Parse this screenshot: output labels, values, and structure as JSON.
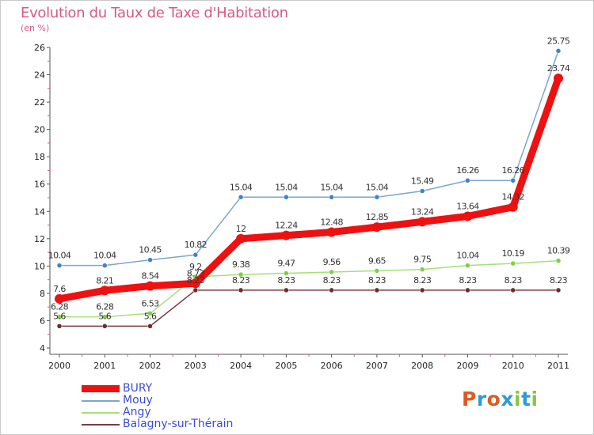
{
  "title": "Evolution du Taux de Taxe d'Habitation",
  "subtitle": "(en %)",
  "logo": {
    "text": "Proxiti",
    "colors": [
      "#e05a20",
      "#2e9ad6",
      "#e05a20",
      "#2e9ad6",
      "#8cc63f",
      "#2e9ad6",
      "#8cc63f"
    ]
  },
  "colors": {
    "title": "#d45b84",
    "legend_text": "#3b4bd8",
    "axis": "#555555",
    "tick_minor": "#d45b84"
  },
  "chart_data": {
    "type": "line",
    "title": "Evolution du Taux de Taxe d'Habitation",
    "ylabel": "(en %)",
    "xlabel": "",
    "x": [
      "2000",
      "2001",
      "2002",
      "2003",
      "2004",
      "2005",
      "2006",
      "2007",
      "2008",
      "2009",
      "2010",
      "2011"
    ],
    "ylim": [
      4,
      26
    ],
    "yticks": [
      "4",
      "6",
      "8",
      "10",
      "12",
      "14",
      "16",
      "18",
      "20",
      "22",
      "24",
      "26"
    ],
    "grid": false,
    "legend_position": "bottom-left",
    "series": [
      {
        "name": "BURY",
        "color": "#ee1111",
        "marker": "#ee1111",
        "values": [
          7.6,
          8.21,
          8.54,
          8.73,
          12,
          12.24,
          12.48,
          12.85,
          13.24,
          13.64,
          14.32,
          23.74
        ],
        "labels": [
          "7.6",
          "8.21",
          "8.54",
          "8.73",
          "12",
          "12.24",
          "12.48",
          "12.85",
          "13.24",
          "13.64",
          "14.32",
          "23.74"
        ]
      },
      {
        "name": "Mouy",
        "color": "#7ba6d0",
        "marker": "#3e85c6",
        "values": [
          10.04,
          10.04,
          10.45,
          10.82,
          15.04,
          15.04,
          15.04,
          15.04,
          15.49,
          16.26,
          16.26,
          25.75
        ],
        "labels": [
          "10.04",
          "10.04",
          "10.45",
          "10.82",
          "15.04",
          "15.04",
          "15.04",
          "15.04",
          "15.49",
          "16.26",
          "16.26",
          "25.75"
        ]
      },
      {
        "name": "Angy",
        "color": "#a4e07a",
        "marker": "#7fcf45",
        "values": [
          6.28,
          6.28,
          6.53,
          9.2,
          9.38,
          9.47,
          9.56,
          9.65,
          9.75,
          10.04,
          10.19,
          10.39
        ],
        "labels": [
          "6.28",
          "6.28",
          "6.53",
          "9.2",
          "9.38",
          "9.47",
          "9.56",
          "9.65",
          "9.75",
          "10.04",
          "10.19",
          "10.39"
        ]
      },
      {
        "name": "Balagny-sur-Thérain",
        "color": "#7a3d3d",
        "marker": "#6b2d2d",
        "values": [
          5.6,
          5.6,
          5.6,
          8.23,
          8.23,
          8.23,
          8.23,
          8.23,
          8.23,
          8.23,
          8.23,
          8.23
        ],
        "labels": [
          "5.6",
          "5.6",
          "5.6",
          "8.23",
          "8.23",
          "8.23",
          "8.23",
          "8.23",
          "8.23",
          "8.23",
          "8.23",
          "8.23"
        ]
      }
    ]
  }
}
